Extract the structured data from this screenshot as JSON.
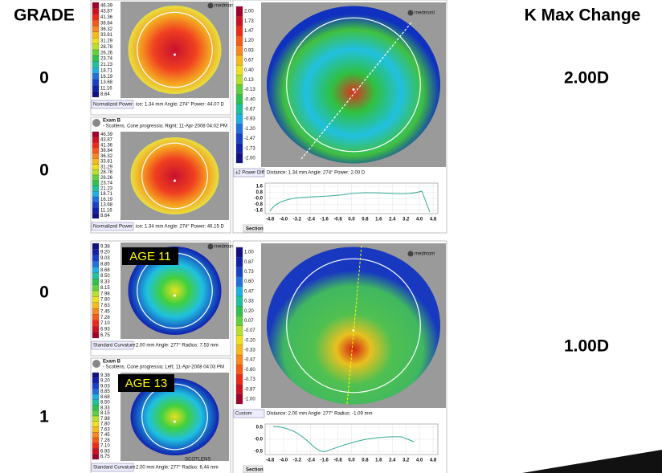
{
  "grade": {
    "title": "GRADE",
    "values": [
      "0",
      "0",
      "0",
      "1"
    ]
  },
  "kmax": {
    "title": "K Max Change",
    "values": [
      "2.00D",
      "1.00D"
    ]
  },
  "brand": "medmont",
  "groups": [
    {
      "map1": {
        "scale": [
          "46.39",
          "43.87",
          "41.36",
          "38.84",
          "36.32",
          "33.81",
          "31.29",
          "28.78",
          "26.26",
          "23.74",
          "21.23",
          "18.71",
          "16.19",
          "13.68",
          "11.16",
          "8.64"
        ],
        "label": "Normalized Power",
        "info": "ice: 1.34 mm  Angle: 274°  Power: 44.07 D"
      },
      "map2": {
        "exam": "Exam B",
        "exam_detail": "- Scotlens, Cone progressio; Right; 11-Apr-2008 04:02 PM",
        "scale": [
          "46.39",
          "43.87",
          "41.36",
          "38.84",
          "36.32",
          "33.81",
          "31.29",
          "28.78",
          "26.26",
          "23.74",
          "21.23",
          "18.71",
          "16.19",
          "13.68",
          "11.16",
          "8.64"
        ],
        "label": "Normalized Power",
        "info": "ice: 1.34 mm  Angle: 274°  Power: 46.15 D"
      },
      "diff": {
        "scale": [
          "2.00",
          "1.73",
          "1.47",
          "1.20",
          "0.93",
          "0.67",
          "0.40",
          "0.13",
          "-0.13",
          "-0.40",
          "-0.67",
          "-0.93",
          "-1.20",
          "-1.47",
          "-1.73",
          "-2.00"
        ],
        "label": "±2 Power Diff",
        "info": "Distance: 1.34 mm  Angle: 274°  Power: 2.00 D",
        "section": {
          "yticks": [
            "1.6",
            "0.8",
            "-0.0",
            "-0.8",
            "-1.6"
          ],
          "xticks": [
            "-4.8",
            "-4.0",
            "-3.2",
            "-2.4",
            "-1.6",
            "-0.8",
            "0.0",
            "0.8",
            "1.6",
            "2.4",
            "3.2",
            "4.0",
            "4.8"
          ],
          "tab": "Section"
        }
      }
    },
    {
      "map1": {
        "scale": [
          "9.38",
          "9.20",
          "9.03",
          "8.85",
          "8.68",
          "8.50",
          "8.33",
          "8.15",
          "7.98",
          "7.80",
          "7.63",
          "7.45",
          "7.28",
          "7.10",
          "6.93",
          "6.75"
        ],
        "label": "Standard Curvature",
        "info": "2.00 mm  Angle: 277°  Radius: 7.53 mm",
        "overlay": "AGE 11"
      },
      "map2": {
        "exam": "Exam B",
        "exam_detail": "- Scotlens, Cone progressio; Left; 11-Apr-2008 04:03 PM",
        "scale": [
          "9.38",
          "9.20",
          "9.03",
          "8.85",
          "8.68",
          "8.50",
          "8.33",
          "8.15",
          "7.98",
          "7.80",
          "7.63",
          "7.45",
          "7.28",
          "7.10",
          "6.93",
          "6.75"
        ],
        "label": "Standard Curvature",
        "info": "2.00 mm  Angle: 277°  Radius: 6.44 mm",
        "overlay": "AGE 13",
        "stamp": "SCOTLENS"
      },
      "diff": {
        "scale": [
          "1.00",
          "0.87",
          "0.73",
          "0.60",
          "0.47",
          "0.33",
          "0.20",
          "0.07",
          "-0.07",
          "-0.20",
          "-0.33",
          "-0.47",
          "-0.60",
          "-0.73",
          "-0.87",
          "-1.00"
        ],
        "label": "Custom",
        "info": "Distance: 2.00 mm  Angle: 277°  Radius: -1.09 mm",
        "section": {
          "yticks": [
            "0.5",
            "-0.0",
            "-0.5"
          ],
          "xticks": [
            "-4.8",
            "-4.0",
            "-3.2",
            "-2.4",
            "-1.6",
            "-0.8",
            "0.0",
            "0.8",
            "1.6",
            "2.4",
            "3.2",
            "4.0",
            "4.8"
          ],
          "tab": "Section"
        }
      }
    }
  ]
}
